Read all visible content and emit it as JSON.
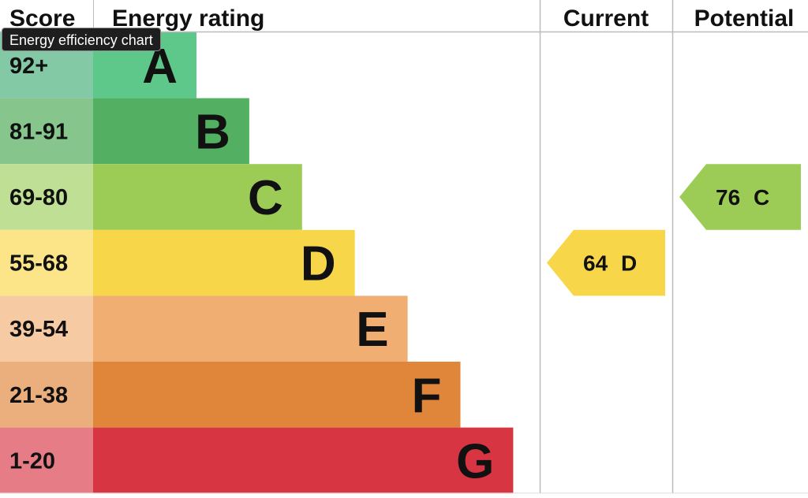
{
  "chart_data": {
    "type": "bar",
    "title": "",
    "headers": {
      "score": "Score",
      "rating": "Energy rating",
      "current": "Current",
      "potential": "Potential"
    },
    "bands": [
      {
        "letter": "A",
        "range": "92+",
        "min": 92,
        "max": 100,
        "color": "#5ec88a",
        "score_bg": "#83c9a6"
      },
      {
        "letter": "B",
        "range": "81-91",
        "min": 81,
        "max": 91,
        "color": "#53b063",
        "score_bg": "#86c68d"
      },
      {
        "letter": "C",
        "range": "69-80",
        "min": 69,
        "max": 80,
        "color": "#9ccc56",
        "score_bg": "#bfdf94"
      },
      {
        "letter": "D",
        "range": "55-68",
        "min": 55,
        "max": 68,
        "color": "#f8d64a",
        "score_bg": "#fbe588"
      },
      {
        "letter": "E",
        "range": "39-54",
        "min": 39,
        "max": 54,
        "color": "#f0ae72",
        "score_bg": "#f6cba4"
      },
      {
        "letter": "F",
        "range": "21-38",
        "min": 21,
        "max": 38,
        "color": "#e0863a",
        "score_bg": "#ebae7d"
      },
      {
        "letter": "G",
        "range": "1-20",
        "min": 1,
        "max": 20,
        "color": "#d83543",
        "score_bg": "#e67c86"
      }
    ],
    "current": {
      "value": 64,
      "band": "D",
      "label_value": "64",
      "label_band": "D",
      "color": "#f8d64a"
    },
    "potential": {
      "value": 76,
      "band": "C",
      "label_value": "76",
      "label_band": "C",
      "color": "#9ccc56"
    }
  },
  "tooltip": {
    "text": "Energy efficiency chart"
  }
}
